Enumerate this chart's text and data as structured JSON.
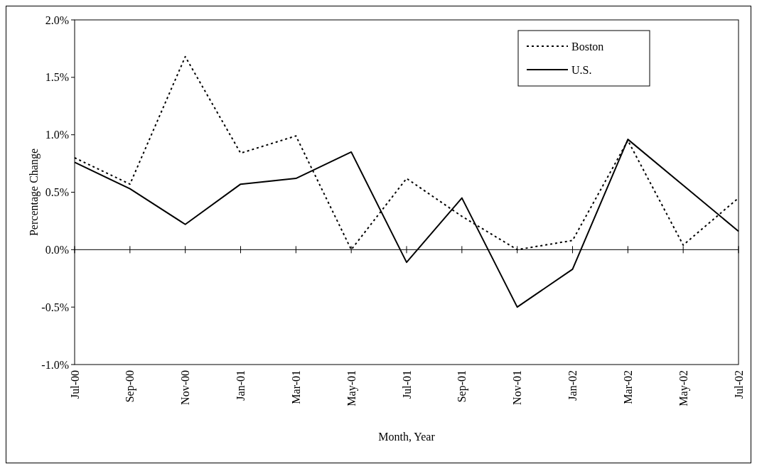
{
  "chart_data": {
    "type": "line",
    "xlabel": "Month, Year",
    "ylabel": "Percentage Change",
    "categories": [
      "Jul-00",
      "Sep-00",
      "Nov-00",
      "Jan-01",
      "Mar-01",
      "May-01",
      "Jul-01",
      "Sep-01",
      "Nov-01",
      "Jan-02",
      "Mar-02",
      "May-02",
      "Jul-02"
    ],
    "series": [
      {
        "name": "Boston",
        "color": "#000000",
        "line_style": "dotted",
        "values": [
          0.8,
          0.57,
          1.68,
          0.84,
          0.99,
          0.0,
          0.62,
          0.29,
          0.0,
          0.08,
          0.95,
          0.04,
          0.45
        ]
      },
      {
        "name": "U.S.",
        "color": "#000000",
        "line_style": "solid",
        "values": [
          0.76,
          0.53,
          0.22,
          0.57,
          0.62,
          0.85,
          -0.11,
          0.45,
          -0.5,
          -0.17,
          0.96,
          0.56,
          0.16
        ]
      }
    ],
    "ylim": [
      -1,
      2
    ],
    "yticks": [
      {
        "value": -1,
        "label": "-1.0%"
      },
      {
        "value": -0.5,
        "label": "-0.5%"
      },
      {
        "value": 0,
        "label": "0.0%"
      },
      {
        "value": 0.5,
        "label": "0.5%"
      },
      {
        "value": 1,
        "label": "1.0%"
      },
      {
        "value": 1.5,
        "label": "1.5%"
      },
      {
        "value": 2,
        "label": "2.0%"
      }
    ],
    "legend": "top right"
  }
}
